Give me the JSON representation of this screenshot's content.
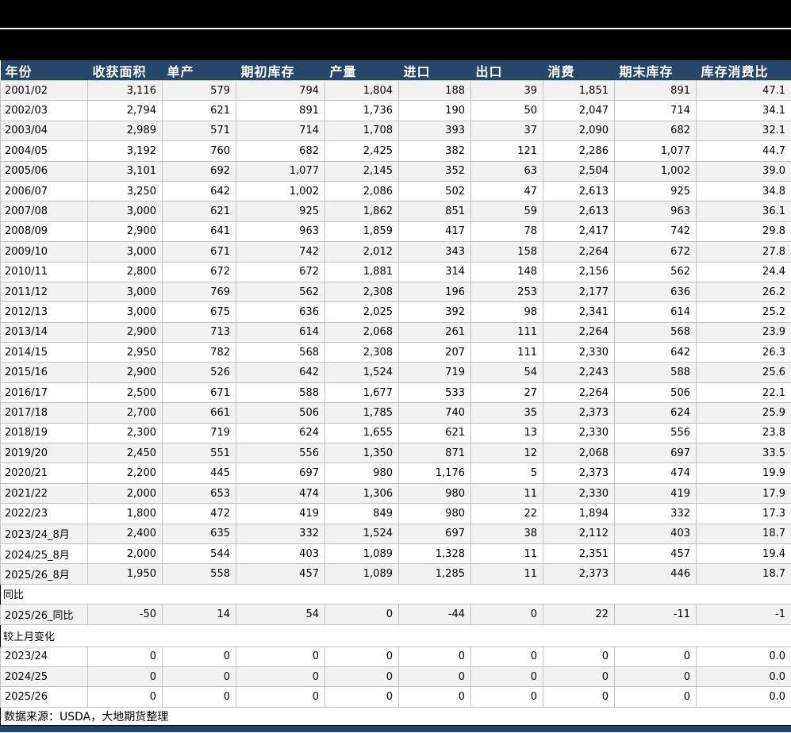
{
  "colors": {
    "title_bar": "#000000",
    "header_bg": "#254768",
    "row_alt": "#F2F2F2",
    "grid": "#C3C3C3",
    "bottom_bar": "#20456B"
  },
  "table": {
    "columns": [
      "年份",
      "收获面积",
      "单产",
      "期初库存",
      "产量",
      "进口",
      "出口",
      "消费",
      "期末库存",
      "库存消费比"
    ],
    "rows": [
      [
        "2001/02",
        "3,116",
        "579",
        "794",
        "1,804",
        "188",
        "39",
        "1,851",
        "891",
        "47.1"
      ],
      [
        "2002/03",
        "2,794",
        "621",
        "891",
        "1,736",
        "190",
        "50",
        "2,047",
        "714",
        "34.1"
      ],
      [
        "2003/04",
        "2,989",
        "571",
        "714",
        "1,708",
        "393",
        "37",
        "2,090",
        "682",
        "32.1"
      ],
      [
        "2004/05",
        "3,192",
        "760",
        "682",
        "2,425",
        "382",
        "121",
        "2,286",
        "1,077",
        "44.7"
      ],
      [
        "2005/06",
        "3,101",
        "692",
        "1,077",
        "2,145",
        "352",
        "63",
        "2,504",
        "1,002",
        "39.0"
      ],
      [
        "2006/07",
        "3,250",
        "642",
        "1,002",
        "2,086",
        "502",
        "47",
        "2,613",
        "925",
        "34.8"
      ],
      [
        "2007/08",
        "3,000",
        "621",
        "925",
        "1,862",
        "851",
        "59",
        "2,613",
        "963",
        "36.1"
      ],
      [
        "2008/09",
        "2,900",
        "641",
        "963",
        "1,859",
        "417",
        "78",
        "2,417",
        "742",
        "29.8"
      ],
      [
        "2009/10",
        "3,000",
        "671",
        "742",
        "2,012",
        "343",
        "158",
        "2,264",
        "672",
        "27.8"
      ],
      [
        "2010/11",
        "2,800",
        "672",
        "672",
        "1,881",
        "314",
        "148",
        "2,156",
        "562",
        "24.4"
      ],
      [
        "2011/12",
        "3,000",
        "769",
        "562",
        "2,308",
        "196",
        "253",
        "2,177",
        "636",
        "26.2"
      ],
      [
        "2012/13",
        "3,000",
        "675",
        "636",
        "2,025",
        "392",
        "98",
        "2,341",
        "614",
        "25.2"
      ],
      [
        "2013/14",
        "2,900",
        "713",
        "614",
        "2,068",
        "261",
        "111",
        "2,264",
        "568",
        "23.9"
      ],
      [
        "2014/15",
        "2,950",
        "782",
        "568",
        "2,308",
        "207",
        "111",
        "2,330",
        "642",
        "26.3"
      ],
      [
        "2015/16",
        "2,900",
        "526",
        "642",
        "1,524",
        "719",
        "54",
        "2,243",
        "588",
        "25.6"
      ],
      [
        "2016/17",
        "2,500",
        "671",
        "588",
        "1,677",
        "533",
        "27",
        "2,264",
        "506",
        "22.1"
      ],
      [
        "2017/18",
        "2,700",
        "661",
        "506",
        "1,785",
        "740",
        "35",
        "2,373",
        "624",
        "25.9"
      ],
      [
        "2018/19",
        "2,300",
        "719",
        "624",
        "1,655",
        "621",
        "13",
        "2,330",
        "556",
        "23.8"
      ],
      [
        "2019/20",
        "2,450",
        "551",
        "556",
        "1,350",
        "871",
        "12",
        "2,068",
        "697",
        "33.5"
      ],
      [
        "2020/21",
        "2,200",
        "445",
        "697",
        "980",
        "1,176",
        "5",
        "2,373",
        "474",
        "19.9"
      ],
      [
        "2021/22",
        "2,000",
        "653",
        "474",
        "1,306",
        "980",
        "11",
        "2,330",
        "419",
        "17.9"
      ],
      [
        "2022/23",
        "1,800",
        "472",
        "419",
        "849",
        "980",
        "22",
        "1,894",
        "332",
        "17.3"
      ],
      [
        "2023/24_8月",
        "2,400",
        "635",
        "332",
        "1,524",
        "697",
        "38",
        "2,112",
        "403",
        "18.7"
      ],
      [
        "2024/25_8月",
        "2,000",
        "544",
        "403",
        "1,089",
        "1,328",
        "11",
        "2,351",
        "457",
        "19.4"
      ],
      [
        "2025/26_8月",
        "1,950",
        "558",
        "457",
        "1,089",
        "1,285",
        "11",
        "2,373",
        "446",
        "18.7"
      ]
    ]
  },
  "yoy": {
    "section_label": "同比",
    "row": [
      "2025/26_同比",
      "-50",
      "14",
      "54",
      "0",
      "-44",
      "0",
      "22",
      "-11",
      "-1"
    ]
  },
  "mom": {
    "section_label": "较上月变化",
    "rows": [
      [
        "2023/24",
        "0",
        "0",
        "0",
        "0",
        "0",
        "0",
        "0",
        "0",
        "0.0"
      ],
      [
        "2024/25",
        "0",
        "0",
        "0",
        "0",
        "0",
        "0",
        "0",
        "0",
        "0.0"
      ],
      [
        "2025/26",
        "0",
        "0",
        "0",
        "0",
        "0",
        "0",
        "0",
        "0",
        "0.0"
      ]
    ]
  },
  "source_note": "数据来源：USDA，大地期货整理"
}
